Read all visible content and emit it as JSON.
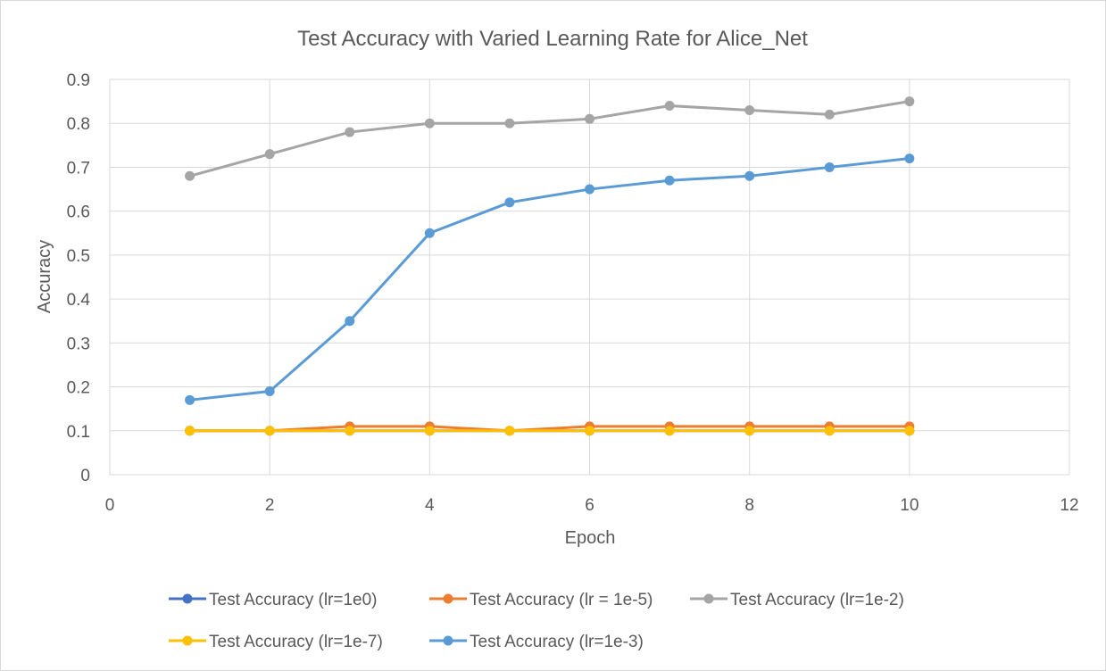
{
  "chart_data": {
    "type": "line",
    "title": "Test Accuracy with Varied Learning Rate for Alice_Net",
    "xlabel": "Epoch",
    "ylabel": "Accuracy",
    "xlim": [
      0,
      12
    ],
    "ylim": [
      0,
      0.9
    ],
    "x_ticks": [
      0,
      2,
      4,
      6,
      8,
      10,
      12
    ],
    "y_ticks": [
      0,
      0.1,
      0.2,
      0.3,
      0.4,
      0.5,
      0.6,
      0.7,
      0.8,
      0.9
    ],
    "grid": true,
    "legend_position": "bottom",
    "x": [
      1,
      2,
      3,
      4,
      5,
      6,
      7,
      8,
      9,
      10
    ],
    "series": [
      {
        "name": "Test Accuracy (lr=1e0)",
        "color": "#4472c4",
        "values": [
          0.1,
          0.1,
          0.1,
          0.1,
          0.1,
          0.1,
          0.1,
          0.1,
          0.1,
          0.1
        ]
      },
      {
        "name": "Test Accuracy (lr = 1e-5)",
        "color": "#ed7d31",
        "values": [
          0.1,
          0.1,
          0.11,
          0.11,
          0.1,
          0.11,
          0.11,
          0.11,
          0.11,
          0.11
        ]
      },
      {
        "name": "Test Accuracy (lr=1e-2)",
        "color": "#a5a5a5",
        "values": [
          0.68,
          0.73,
          0.78,
          0.8,
          0.8,
          0.81,
          0.84,
          0.83,
          0.82,
          0.85
        ]
      },
      {
        "name": "Test Accuracy (lr=1e-7)",
        "color": "#ffc000",
        "values": [
          0.1,
          0.1,
          0.1,
          0.1,
          0.1,
          0.1,
          0.1,
          0.1,
          0.1,
          0.1
        ]
      },
      {
        "name": "Test Accuracy (lr=1e-3)",
        "color": "#5b9bd5",
        "values": [
          0.17,
          0.19,
          0.35,
          0.55,
          0.62,
          0.65,
          0.67,
          0.68,
          0.7,
          0.72
        ]
      }
    ]
  }
}
